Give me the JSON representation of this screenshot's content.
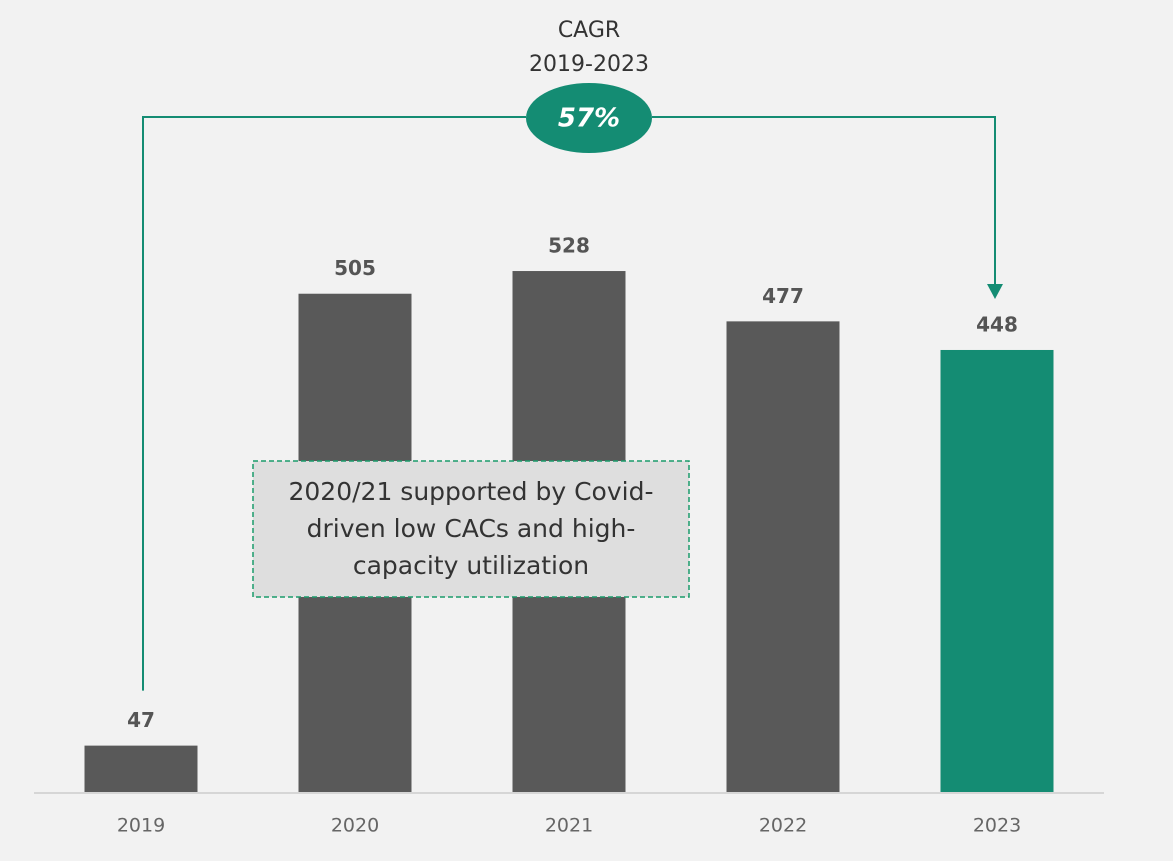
{
  "chart_data": {
    "type": "bar",
    "categories": [
      "2019",
      "2020",
      "2021",
      "2022",
      "2023"
    ],
    "values": [
      47,
      505,
      528,
      477,
      448
    ],
    "colors": [
      "#595959",
      "#595959",
      "#595959",
      "#595959",
      "#148c73"
    ],
    "ylim": [
      0,
      600
    ],
    "grid": false,
    "cagr": {
      "label": [
        "CAGR",
        "2019-2023"
      ],
      "value": 57,
      "value_label": "57%",
      "color": "#148c73"
    },
    "note": [
      "2020/21 supported by Covid-",
      "driven low CACs and high-",
      "capacity utilization"
    ]
  }
}
